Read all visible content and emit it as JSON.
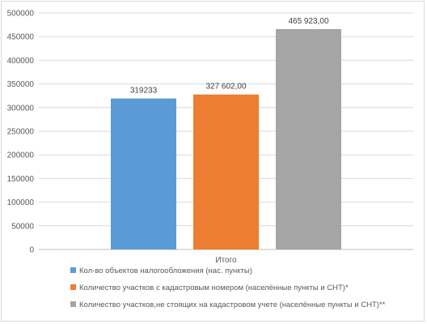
{
  "chart_data": {
    "type": "bar",
    "categories": [
      "Итого"
    ],
    "ylim": [
      0,
      500000
    ],
    "ytick_step": 50000,
    "y_tick_labels": [
      "0",
      "50000",
      "100000",
      "150000",
      "200000",
      "250000",
      "300000",
      "350000",
      "400000",
      "450000",
      "500000"
    ],
    "grid": true,
    "legend_position": "bottom",
    "series": [
      {
        "name": "Кол-во объектов налогообложения (нас. пункты)",
        "values": [
          319233
        ],
        "data_label": "319233",
        "color": "#5b9bd5"
      },
      {
        "name": "Количество участков с кадастровым номером (населённые пункты и СНТ)*",
        "values": [
          327602
        ],
        "data_label": "327 602,00",
        "color": "#ed7d31"
      },
      {
        "name": "Количество участков,не стоящих на кадастровом учете (населённые пункты и СНТ)**",
        "values": [
          465923
        ],
        "data_label": "465 923,00",
        "color": "#a5a5a5"
      }
    ]
  },
  "style": {
    "grid_color": "#d9d9d9",
    "axis_color": "#bfbfbf"
  }
}
